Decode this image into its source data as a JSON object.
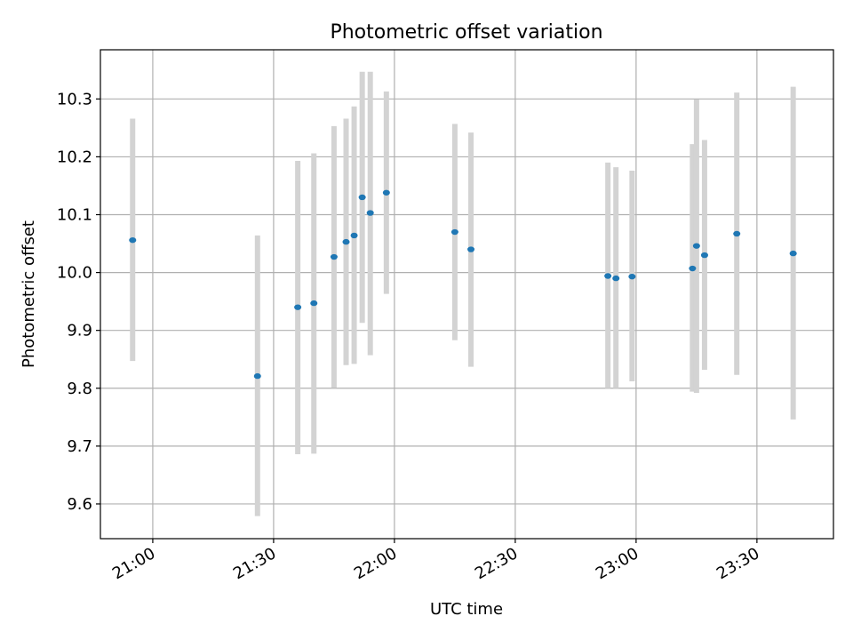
{
  "chart_data": {
    "type": "scatter",
    "title": "Photometric offset variation",
    "xlabel": "UTC time",
    "ylabel": "Photometric offset",
    "x_axis": {
      "kind": "time",
      "range": [
        "20:47",
        "23:49"
      ],
      "ticks": [
        "21:00",
        "21:30",
        "22:00",
        "22:30",
        "23:00",
        "23:30"
      ],
      "tick_label_rotation": "30 degrees"
    },
    "y_axis": {
      "range": [
        9.54,
        10.385
      ],
      "ticks": [
        9.6,
        9.7,
        9.8,
        9.9,
        10.0,
        10.1,
        10.2,
        10.3
      ],
      "tick_labels": [
        "9.6",
        "9.7",
        "9.8",
        "9.9",
        "10.0",
        "10.1",
        "10.2",
        "10.3"
      ]
    },
    "grid": true,
    "series": [
      {
        "marker_color": "#1f77b4",
        "error_bar_color": "#d3d3d3",
        "points": [
          {
            "x": "20:55",
            "y": 10.056,
            "ylow": 9.847,
            "yhigh": 10.266
          },
          {
            "x": "21:26",
            "y": 9.821,
            "ylow": 9.579,
            "yhigh": 10.064
          },
          {
            "x": "21:36",
            "y": 9.94,
            "ylow": 9.686,
            "yhigh": 10.193
          },
          {
            "x": "21:40",
            "y": 9.947,
            "ylow": 9.687,
            "yhigh": 10.206
          },
          {
            "x": "21:45",
            "y": 10.027,
            "ylow": 9.801,
            "yhigh": 10.253
          },
          {
            "x": "21:48",
            "y": 10.053,
            "ylow": 9.84,
            "yhigh": 10.266
          },
          {
            "x": "21:50",
            "y": 10.064,
            "ylow": 9.842,
            "yhigh": 10.287
          },
          {
            "x": "21:52",
            "y": 10.13,
            "ylow": 9.913,
            "yhigh": 10.347
          },
          {
            "x": "21:54",
            "y": 10.103,
            "ylow": 9.857,
            "yhigh": 10.347
          },
          {
            "x": "21:58",
            "y": 10.138,
            "ylow": 9.963,
            "yhigh": 10.313
          },
          {
            "x": "22:15",
            "y": 10.07,
            "ylow": 9.883,
            "yhigh": 10.257
          },
          {
            "x": "22:19",
            "y": 10.04,
            "ylow": 9.837,
            "yhigh": 10.242
          },
          {
            "x": "22:53",
            "y": 9.994,
            "ylow": 9.8,
            "yhigh": 10.19
          },
          {
            "x": "22:55",
            "y": 9.99,
            "ylow": 9.8,
            "yhigh": 10.182
          },
          {
            "x": "22:59",
            "y": 9.993,
            "ylow": 9.812,
            "yhigh": 10.176
          },
          {
            "x": "23:14",
            "y": 10.007,
            "ylow": 9.794,
            "yhigh": 10.222
          },
          {
            "x": "23:15",
            "y": 10.046,
            "ylow": 9.792,
            "yhigh": 10.299
          },
          {
            "x": "23:17",
            "y": 10.03,
            "ylow": 9.832,
            "yhigh": 10.229
          },
          {
            "x": "23:25",
            "y": 10.067,
            "ylow": 9.823,
            "yhigh": 10.311
          },
          {
            "x": "23:39",
            "y": 10.033,
            "ylow": 9.746,
            "yhigh": 10.321
          }
        ]
      }
    ]
  }
}
